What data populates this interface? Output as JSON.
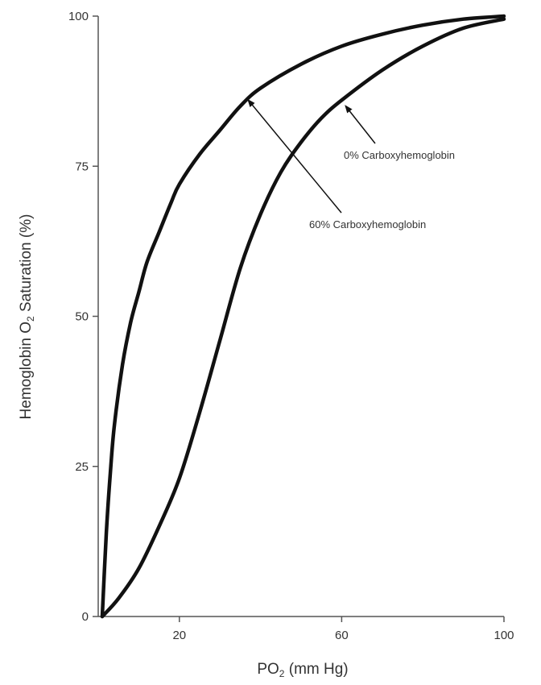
{
  "chart_data": {
    "type": "line",
    "title": "",
    "xlabel": {
      "main": "PO",
      "sub": "2",
      "rest": " (mm Hg)"
    },
    "ylabel": {
      "main": "Hemoglobin O",
      "sub": "2",
      "rest": " Saturation (%)"
    },
    "xlim": [
      0,
      100
    ],
    "ylim": [
      0,
      100
    ],
    "x_ticks": [
      20,
      60,
      100
    ],
    "y_ticks": [
      0,
      25,
      50,
      75,
      100
    ],
    "grid": false,
    "line_color": "#111111",
    "series": [
      {
        "key": "co60",
        "x": [
          1,
          2,
          3,
          4,
          6,
          8,
          10,
          12,
          15,
          18,
          20,
          25,
          30,
          35,
          40,
          50,
          60,
          70,
          80,
          90,
          100
        ],
        "y": [
          0,
          14,
          24,
          32,
          42,
          49,
          54,
          59,
          64,
          69,
          72,
          77,
          81,
          85,
          88,
          92,
          95,
          97,
          98.5,
          99.5,
          100
        ]
      },
      {
        "key": "co0",
        "x": [
          1,
          5,
          10,
          15,
          20,
          25,
          30,
          35,
          40,
          45,
          50,
          55,
          60,
          70,
          80,
          90,
          100
        ],
        "y": [
          0,
          3,
          8,
          15,
          23,
          34,
          46,
          58,
          67,
          74,
          79,
          83,
          86,
          91,
          95,
          98,
          99.5
        ]
      }
    ],
    "annotations": [
      {
        "key": "co0",
        "text": "0% Carboxyhemoglobin",
        "arrow_to": [
          61,
          85
        ]
      },
      {
        "key": "co60",
        "text": "60% Carboxyhemoglobin",
        "arrow_to": [
          37,
          86
        ]
      }
    ]
  }
}
